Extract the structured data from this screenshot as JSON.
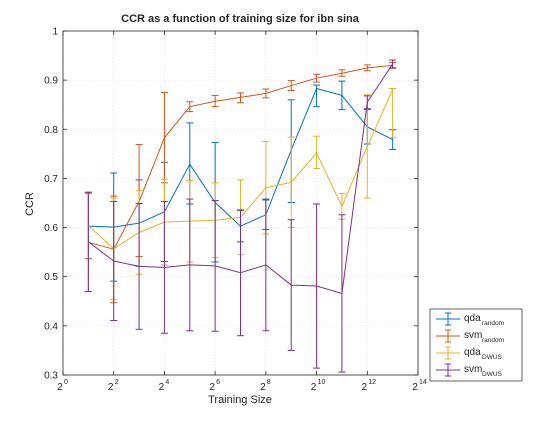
{
  "chart_data": {
    "type": "line",
    "title": "CCR as a function of training size for ibn sina",
    "xlabel": "Training Size",
    "ylabel": "CCR",
    "x_scale": "log2",
    "xlim": [
      0,
      14
    ],
    "ylim": [
      0.3,
      1.0
    ],
    "grid": true,
    "legend_position": "bottom-right-outside",
    "xticks": [
      {
        "exp": 0,
        "base": "2",
        "sup": "0"
      },
      {
        "exp": 2,
        "base": "2",
        "sup": "2"
      },
      {
        "exp": 4,
        "base": "2",
        "sup": "4"
      },
      {
        "exp": 6,
        "base": "2",
        "sup": "6"
      },
      {
        "exp": 8,
        "base": "2",
        "sup": "8"
      },
      {
        "exp": 10,
        "base": "2",
        "sup": "10"
      },
      {
        "exp": 12,
        "base": "2",
        "sup": "12"
      },
      {
        "exp": 14,
        "base": "2",
        "sup": "14"
      }
    ],
    "yticks": [
      0.3,
      0.4,
      0.5,
      0.6,
      0.7,
      0.8,
      0.9,
      1.0
    ],
    "ytick_labels": [
      "0.3",
      "0.4",
      "0.5",
      "0.6",
      "0.7",
      "0.8",
      "0.9",
      "1"
    ],
    "x_exponents": [
      1,
      2,
      3,
      4,
      5,
      6,
      7,
      8,
      9,
      10,
      11,
      12,
      13
    ],
    "series": [
      {
        "name": "qda",
        "name_sub": "random",
        "color": "#0072BD",
        "values": [
          0.603,
          0.601,
          0.609,
          0.632,
          0.729,
          0.651,
          0.603,
          0.626,
          0.758,
          0.883,
          0.869,
          0.805,
          0.779
        ],
        "err_low": [
          0.537,
          0.491,
          0.521,
          0.531,
          0.648,
          0.53,
          0.571,
          0.596,
          0.651,
          0.846,
          0.84,
          0.77,
          0.759
        ],
        "err_high": [
          0.67,
          0.711,
          0.697,
          0.733,
          0.813,
          0.773,
          0.635,
          0.656,
          0.86,
          0.89,
          0.898,
          0.84,
          0.799
        ]
      },
      {
        "name": "svm",
        "name_sub": "random",
        "color": "#D95319",
        "values": [
          0.57,
          0.556,
          0.653,
          0.783,
          0.846,
          0.857,
          0.865,
          0.873,
          0.889,
          0.904,
          0.914,
          0.925,
          0.93
        ],
        "err_low": [
          0.47,
          0.447,
          0.541,
          0.691,
          0.836,
          0.846,
          0.854,
          0.864,
          0.879,
          0.896,
          0.908,
          0.919,
          0.924
        ],
        "err_high": [
          0.671,
          0.664,
          0.769,
          0.875,
          0.856,
          0.869,
          0.874,
          0.882,
          0.899,
          0.912,
          0.921,
          0.931,
          0.936
        ]
      },
      {
        "name": "qda",
        "name_sub": "DWUS",
        "color": "#EDB120",
        "values": [
          0.604,
          0.557,
          0.59,
          0.611,
          0.613,
          0.615,
          0.621,
          0.681,
          0.692,
          0.752,
          0.643,
          0.765,
          0.881
        ],
        "err_low": [
          0.536,
          0.454,
          0.505,
          0.524,
          0.53,
          0.539,
          0.545,
          0.587,
          0.6,
          0.72,
          0.617,
          0.66,
          0.783
        ],
        "err_high": [
          0.672,
          0.66,
          0.675,
          0.698,
          0.696,
          0.691,
          0.697,
          0.775,
          0.784,
          0.786,
          0.669,
          0.87,
          0.883
        ]
      },
      {
        "name": "svm",
        "name_sub": "DWUS",
        "color": "#7E2F8E",
        "values": [
          0.571,
          0.532,
          0.521,
          0.519,
          0.524,
          0.522,
          0.508,
          0.524,
          0.483,
          0.481,
          0.466,
          0.855,
          0.933
        ],
        "err_low": [
          0.47,
          0.411,
          0.393,
          0.385,
          0.39,
          0.389,
          0.38,
          0.39,
          0.35,
          0.314,
          0.306,
          0.842,
          0.925
        ],
        "err_high": [
          0.672,
          0.653,
          0.649,
          0.653,
          0.658,
          0.655,
          0.636,
          0.658,
          0.616,
          0.648,
          0.626,
          0.868,
          0.941
        ]
      }
    ]
  }
}
